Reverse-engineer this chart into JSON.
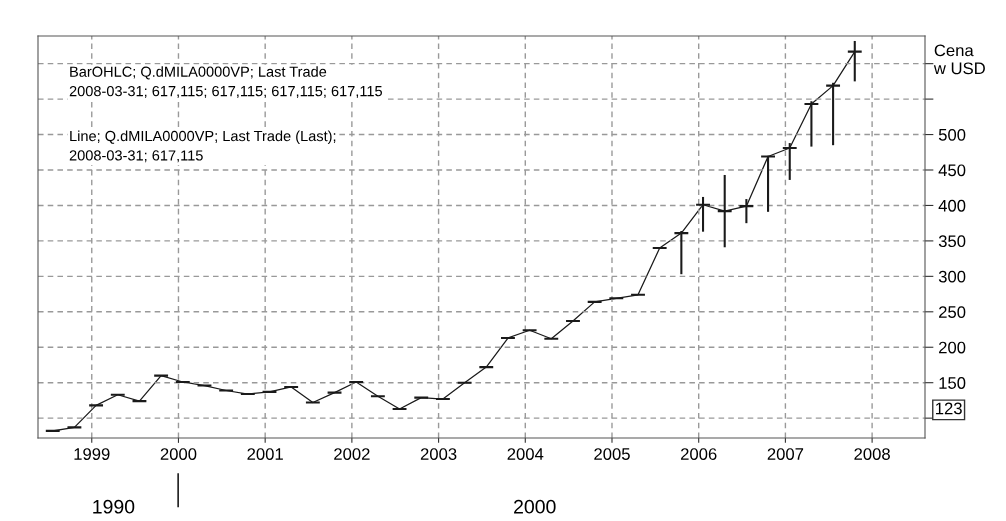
{
  "chart_data": {
    "type": "candlestick",
    "ylabel": "Cena\nw USD",
    "annotations": [
      "BarOHLC; Q.dMILA0000VP; Last Trade\n2008-03-31; 617,115; 617,115; 617,115; 617,115",
      "Line; Q.dMILA0000VP; Last Trade (Last);\n2008-03-31; 617,115",
      "1990",
      "2000",
      "123"
    ],
    "x": [
      1998.55,
      1998.8,
      1999.05,
      1999.3,
      1999.55,
      1999.8,
      2000.05,
      2000.3,
      2000.55,
      2000.8,
      2001.05,
      2001.3,
      2001.55,
      2001.8,
      2002.05,
      2002.3,
      2002.55,
      2002.8,
      2003.05,
      2003.3,
      2003.55,
      2003.8,
      2004.05,
      2004.3,
      2004.55,
      2004.8,
      2005.05,
      2005.3,
      2005.55,
      2005.8,
      2006.05,
      2006.3,
      2006.55,
      2006.8,
      2007.05,
      2007.3,
      2007.55,
      2007.8
    ],
    "ohlc": [
      [
        82,
        82,
        82,
        82
      ],
      [
        87,
        87,
        87,
        87
      ],
      [
        118,
        118,
        118,
        118
      ],
      [
        133,
        133,
        133,
        133
      ],
      [
        124,
        124,
        124,
        124
      ],
      [
        160,
        160,
        160,
        160
      ],
      [
        151,
        151,
        151,
        151
      ],
      [
        146,
        146,
        146,
        146
      ],
      [
        139,
        139,
        139,
        139
      ],
      [
        134,
        134,
        134,
        134
      ],
      [
        137,
        137,
        137,
        137
      ],
      [
        144,
        144,
        144,
        144
      ],
      [
        122,
        122,
        122,
        122
      ],
      [
        136,
        136,
        136,
        136
      ],
      [
        151,
        151,
        151,
        151
      ],
      [
        131,
        131,
        131,
        131
      ],
      [
        113,
        113,
        113,
        113
      ],
      [
        129,
        129,
        129,
        129
      ],
      [
        127,
        127,
        127,
        127
      ],
      [
        150,
        150,
        150,
        150
      ],
      [
        172,
        172,
        172,
        172
      ],
      [
        213,
        213,
        213,
        213
      ],
      [
        224,
        224,
        224,
        224
      ],
      [
        212,
        212,
        212,
        212
      ],
      [
        237,
        237,
        237,
        237
      ],
      [
        264,
        264,
        264,
        264
      ],
      [
        269,
        269,
        269,
        269
      ],
      [
        274,
        274,
        274,
        274
      ],
      [
        340,
        340,
        340,
        340
      ],
      [
        361,
        364,
        303,
        361
      ],
      [
        401,
        412,
        363,
        401
      ],
      [
        392,
        443,
        341,
        392
      ],
      [
        399,
        409,
        375,
        399
      ],
      [
        469,
        470,
        391,
        469
      ],
      [
        481,
        488,
        436,
        481
      ],
      [
        543,
        547,
        483,
        543
      ],
      [
        569,
        573,
        485,
        569
      ],
      [
        617,
        632,
        575,
        617
      ]
    ],
    "series": [
      {
        "type": "line",
        "color": "#1a1a1a",
        "x": [
          1998.55,
          1998.8,
          1999.05,
          1999.3,
          1999.55,
          1999.8,
          2000.05,
          2000.3,
          2000.55,
          2000.8,
          2001.05,
          2001.3,
          2001.55,
          2001.8,
          2002.05,
          2002.3,
          2002.55,
          2002.8,
          2003.05,
          2003.3,
          2003.55,
          2003.8,
          2004.05,
          2004.3,
          2004.55,
          2004.8,
          2005.05,
          2005.3,
          2005.55,
          2005.8,
          2006.05,
          2006.3,
          2006.55,
          2006.8,
          2007.05,
          2007.3,
          2007.55,
          2007.8
        ],
        "values": [
          82,
          87,
          118,
          133,
          124,
          160,
          151,
          146,
          139,
          134,
          137,
          144,
          122,
          136,
          151,
          131,
          113,
          129,
          127,
          150,
          172,
          213,
          224,
          212,
          237,
          264,
          269,
          274,
          340,
          361,
          401,
          392,
          399,
          469,
          481,
          543,
          569,
          617
        ]
      }
    ],
    "color": "#1a1a1a",
    "xlim": [
      1998.38,
      2008.61
    ],
    "xticks": [
      1999,
      2000,
      2001,
      2002,
      2003,
      2004,
      2005,
      2006,
      2007,
      2008
    ],
    "ylim": [
      72,
      639
    ],
    "yticks": [
      {
        "value": 100,
        "label": null
      },
      150,
      200,
      250,
      300,
      350,
      400,
      450,
      500,
      {
        "value": 550,
        "label": null
      },
      {
        "value": 600,
        "label": null
      }
    ],
    "grid": true,
    "line_style": "solid"
  }
}
